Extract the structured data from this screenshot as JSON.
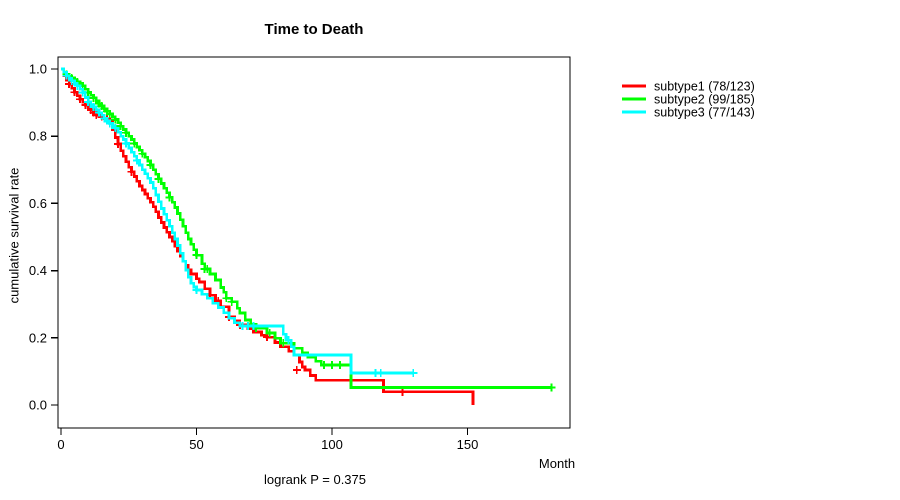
{
  "title": "Time to Death",
  "chart_data": {
    "type": "line",
    "style": "kaplan-meier-step",
    "title": "Time to Death",
    "xlabel": "Month",
    "ylabel": "cumulative survival rate",
    "annotation": "logrank P = 0.375",
    "xlim": [
      0,
      188
    ],
    "ylim": [
      0,
      1
    ],
    "x_ticks": [
      0,
      50,
      100,
      150
    ],
    "y_ticks": [
      0.0,
      0.2,
      0.4,
      0.6,
      0.8,
      1.0
    ],
    "grid": false,
    "legend_position": "top-right-outside",
    "series": [
      {
        "name": "subtype1 (78/123)",
        "color": "#FF0000",
        "steps": [
          [
            0,
            1.0
          ],
          [
            1,
            0.98
          ],
          [
            2,
            0.967
          ],
          [
            3,
            0.955
          ],
          [
            4,
            0.943
          ],
          [
            5,
            0.931
          ],
          [
            6,
            0.92
          ],
          [
            7,
            0.91
          ],
          [
            8,
            0.901
          ],
          [
            9,
            0.893
          ],
          [
            10,
            0.885
          ],
          [
            11,
            0.878
          ],
          [
            12,
            0.87
          ],
          [
            13,
            0.863
          ],
          [
            14,
            0.858
          ],
          [
            16,
            0.852
          ],
          [
            18,
            0.846
          ],
          [
            19,
            0.82
          ],
          [
            20,
            0.796
          ],
          [
            21,
            0.777
          ],
          [
            22,
            0.757
          ],
          [
            23,
            0.74
          ],
          [
            24,
            0.724
          ],
          [
            25,
            0.708
          ],
          [
            26,
            0.694
          ],
          [
            27,
            0.68
          ],
          [
            28,
            0.666
          ],
          [
            29,
            0.652
          ],
          [
            30,
            0.64
          ],
          [
            31,
            0.628
          ],
          [
            32,
            0.615
          ],
          [
            33,
            0.603
          ],
          [
            34,
            0.59
          ],
          [
            35,
            0.575
          ],
          [
            36,
            0.558
          ],
          [
            37,
            0.543
          ],
          [
            38,
            0.528
          ],
          [
            39,
            0.514
          ],
          [
            40,
            0.5
          ],
          [
            41,
            0.487
          ],
          [
            42,
            0.473
          ],
          [
            43,
            0.458
          ],
          [
            44,
            0.443
          ],
          [
            45,
            0.428
          ],
          [
            46,
            0.415
          ],
          [
            47,
            0.402
          ],
          [
            48,
            0.39
          ],
          [
            50,
            0.376
          ],
          [
            51,
            0.366
          ],
          [
            53,
            0.346
          ],
          [
            55,
            0.327
          ],
          [
            57,
            0.31
          ],
          [
            59,
            0.292
          ],
          [
            62,
            0.262
          ],
          [
            64,
            0.25
          ],
          [
            66,
            0.238
          ],
          [
            69,
            0.227
          ],
          [
            71,
            0.217
          ],
          [
            74,
            0.208
          ],
          [
            76,
            0.202
          ],
          [
            79,
            0.186
          ],
          [
            81,
            0.173
          ],
          [
            84,
            0.16
          ],
          [
            86,
            0.149
          ],
          [
            88,
            0.128
          ],
          [
            89,
            0.113
          ],
          [
            90,
            0.104
          ],
          [
            92,
            0.088
          ],
          [
            94,
            0.074
          ],
          [
            119,
            0.039
          ],
          [
            152,
            0.0
          ]
        ],
        "censors": [
          [
            3,
            0.955
          ],
          [
            5,
            0.931
          ],
          [
            7,
            0.91
          ],
          [
            9,
            0.893
          ],
          [
            11,
            0.878
          ],
          [
            12,
            0.87
          ],
          [
            13,
            0.863
          ],
          [
            15,
            0.858
          ],
          [
            16,
            0.852
          ],
          [
            17,
            0.852
          ],
          [
            18,
            0.846
          ],
          [
            21,
            0.777
          ],
          [
            26,
            0.694
          ],
          [
            55,
            0.327
          ],
          [
            58,
            0.31
          ],
          [
            62,
            0.262
          ],
          [
            66,
            0.238
          ],
          [
            76,
            0.202
          ],
          [
            87,
            0.104
          ],
          [
            126,
            0.039
          ]
        ]
      },
      {
        "name": "subtype2 (99/185)",
        "color": "#00FF00",
        "steps": [
          [
            0,
            1.0
          ],
          [
            1,
            0.99
          ],
          [
            2,
            0.984
          ],
          [
            3,
            0.978
          ],
          [
            4,
            0.973
          ],
          [
            5,
            0.968
          ],
          [
            6,
            0.962
          ],
          [
            7,
            0.957
          ],
          [
            8,
            0.95
          ],
          [
            9,
            0.94
          ],
          [
            10,
            0.93
          ],
          [
            11,
            0.922
          ],
          [
            12,
            0.914
          ],
          [
            13,
            0.905
          ],
          [
            14,
            0.897
          ],
          [
            15,
            0.89
          ],
          [
            16,
            0.882
          ],
          [
            17,
            0.874
          ],
          [
            18,
            0.866
          ],
          [
            19,
            0.858
          ],
          [
            20,
            0.85
          ],
          [
            21,
            0.84
          ],
          [
            22,
            0.83
          ],
          [
            23,
            0.82
          ],
          [
            24,
            0.81
          ],
          [
            25,
            0.8
          ],
          [
            26,
            0.79
          ],
          [
            27,
            0.778
          ],
          [
            28,
            0.768
          ],
          [
            29,
            0.758
          ],
          [
            30,
            0.748
          ],
          [
            31,
            0.737
          ],
          [
            32,
            0.726
          ],
          [
            33,
            0.714
          ],
          [
            34,
            0.7
          ],
          [
            35,
            0.687
          ],
          [
            36,
            0.673
          ],
          [
            37,
            0.659
          ],
          [
            38,
            0.645
          ],
          [
            39,
            0.632
          ],
          [
            40,
            0.618
          ],
          [
            41,
            0.603
          ],
          [
            42,
            0.588
          ],
          [
            43,
            0.57
          ],
          [
            44,
            0.551
          ],
          [
            45,
            0.532
          ],
          [
            46,
            0.513
          ],
          [
            47,
            0.494
          ],
          [
            48,
            0.478
          ],
          [
            49,
            0.462
          ],
          [
            50,
            0.446
          ],
          [
            52,
            0.42
          ],
          [
            53,
            0.405
          ],
          [
            55,
            0.39
          ],
          [
            57,
            0.372
          ],
          [
            59,
            0.35
          ],
          [
            60,
            0.336
          ],
          [
            61,
            0.318
          ],
          [
            63,
            0.307
          ],
          [
            65,
            0.288
          ],
          [
            66,
            0.274
          ],
          [
            68,
            0.253
          ],
          [
            70,
            0.24
          ],
          [
            72,
            0.229
          ],
          [
            76,
            0.214
          ],
          [
            79,
            0.199
          ],
          [
            81,
            0.184
          ],
          [
            86,
            0.169
          ],
          [
            89,
            0.155
          ],
          [
            91,
            0.143
          ],
          [
            94,
            0.13
          ],
          [
            96,
            0.119
          ],
          [
            107,
            0.052
          ],
          [
            181,
            0.052
          ]
        ],
        "censors": [
          [
            2,
            0.984
          ],
          [
            4,
            0.973
          ],
          [
            6,
            0.962
          ],
          [
            8,
            0.95
          ],
          [
            10,
            0.93
          ],
          [
            12,
            0.914
          ],
          [
            14,
            0.897
          ],
          [
            15,
            0.89
          ],
          [
            16,
            0.882
          ],
          [
            17,
            0.874
          ],
          [
            18,
            0.866
          ],
          [
            20,
            0.85
          ],
          [
            22,
            0.83
          ],
          [
            24,
            0.81
          ],
          [
            27,
            0.778
          ],
          [
            30,
            0.748
          ],
          [
            33,
            0.714
          ],
          [
            36,
            0.673
          ],
          [
            40,
            0.618
          ],
          [
            50,
            0.446
          ],
          [
            53,
            0.405
          ],
          [
            54,
            0.405
          ],
          [
            61,
            0.318
          ],
          [
            63,
            0.307
          ],
          [
            72,
            0.229
          ],
          [
            77,
            0.214
          ],
          [
            82,
            0.184
          ],
          [
            97,
            0.119
          ],
          [
            100,
            0.119
          ],
          [
            103,
            0.119
          ],
          [
            181,
            0.052
          ]
        ]
      },
      {
        "name": "subtype3 (77/143)",
        "color": "#00FFFF",
        "steps": [
          [
            0,
            1.0
          ],
          [
            1,
            0.99
          ],
          [
            2,
            0.98
          ],
          [
            3,
            0.972
          ],
          [
            4,
            0.965
          ],
          [
            5,
            0.957
          ],
          [
            6,
            0.95
          ],
          [
            7,
            0.94
          ],
          [
            8,
            0.93
          ],
          [
            9,
            0.915
          ],
          [
            10,
            0.902
          ],
          [
            11,
            0.894
          ],
          [
            12,
            0.887
          ],
          [
            13,
            0.878
          ],
          [
            14,
            0.87
          ],
          [
            15,
            0.862
          ],
          [
            16,
            0.853
          ],
          [
            17,
            0.845
          ],
          [
            18,
            0.838
          ],
          [
            19,
            0.831
          ],
          [
            20,
            0.824
          ],
          [
            21,
            0.812
          ],
          [
            22,
            0.8
          ],
          [
            23,
            0.79
          ],
          [
            24,
            0.778
          ],
          [
            25,
            0.765
          ],
          [
            26,
            0.752
          ],
          [
            27,
            0.74
          ],
          [
            28,
            0.728
          ],
          [
            29,
            0.714
          ],
          [
            30,
            0.7
          ],
          [
            31,
            0.688
          ],
          [
            32,
            0.675
          ],
          [
            33,
            0.662
          ],
          [
            34,
            0.645
          ],
          [
            35,
            0.625
          ],
          [
            36,
            0.605
          ],
          [
            37,
            0.585
          ],
          [
            38,
            0.568
          ],
          [
            39,
            0.55
          ],
          [
            40,
            0.532
          ],
          [
            41,
            0.513
          ],
          [
            42,
            0.494
          ],
          [
            43,
            0.475
          ],
          [
            44,
            0.452
          ],
          [
            45,
            0.428
          ],
          [
            46,
            0.402
          ],
          [
            47,
            0.38
          ],
          [
            48,
            0.362
          ],
          [
            49,
            0.351
          ],
          [
            50,
            0.342
          ],
          [
            52,
            0.33
          ],
          [
            54,
            0.318
          ],
          [
            56,
            0.303
          ],
          [
            58,
            0.29
          ],
          [
            60,
            0.275
          ],
          [
            62,
            0.258
          ],
          [
            64,
            0.245
          ],
          [
            66,
            0.235
          ],
          [
            82,
            0.211
          ],
          [
            83,
            0.193
          ],
          [
            85,
            0.173
          ],
          [
            86,
            0.149
          ],
          [
            107,
            0.095
          ],
          [
            130,
            0.095
          ]
        ],
        "censors": [
          [
            2,
            0.98
          ],
          [
            4,
            0.965
          ],
          [
            6,
            0.95
          ],
          [
            8,
            0.93
          ],
          [
            10,
            0.902
          ],
          [
            12,
            0.887
          ],
          [
            14,
            0.87
          ],
          [
            16,
            0.853
          ],
          [
            18,
            0.838
          ],
          [
            20,
            0.824
          ],
          [
            24,
            0.778
          ],
          [
            28,
            0.728
          ],
          [
            50,
            0.342
          ],
          [
            67,
            0.235
          ],
          [
            69,
            0.235
          ],
          [
            71,
            0.235
          ],
          [
            84,
            0.193
          ],
          [
            116,
            0.095
          ],
          [
            118,
            0.095
          ],
          [
            130,
            0.095
          ]
        ]
      }
    ]
  }
}
